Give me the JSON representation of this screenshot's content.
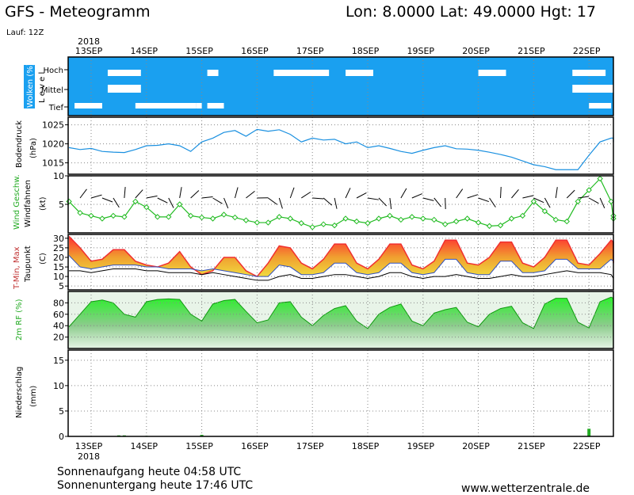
{
  "header": {
    "title": "GFS - Meteogramm",
    "location": "Lon: 8.0000 Lat: 49.0000 Hgt: 17",
    "run": "Lauf: 12Z"
  },
  "footer": {
    "sunrise": "Sonnenaufgang heute 04:58 UTC",
    "sunset": "Sonnenuntergang heute 17:46 UTC",
    "website": "www.wetterzentrale.de"
  },
  "colors": {
    "sky": "#1aa0f0",
    "cloud": "#ffffff",
    "pressure": "#1a90e0",
    "wind": "#22bb22",
    "temp_hot": "#f03030",
    "temp_warm": "#f0a030",
    "temp_mild": "#f0e040",
    "dewpoint": "#000000",
    "rh": "#22dd22",
    "precip": "#22aa22"
  },
  "chart_data": {
    "type": "line",
    "x_axis": {
      "top_year": "2018",
      "bottom_year": "2018",
      "dates": [
        "13SEP",
        "14SEP",
        "15SEP",
        "16SEP",
        "17SEP",
        "18SEP",
        "19SEP",
        "20SEP",
        "21SEP",
        "22SEP"
      ]
    },
    "panels": [
      {
        "id": "clouds",
        "ylabel": "Wolken (%)",
        "ylabel2": "L e v e l",
        "levels": [
          "Hoch",
          "Mittel",
          "Tief"
        ],
        "series": [
          {
            "name": "Hoch",
            "segments": [
              [
                0.3,
                0.5
              ],
              [
                0.4,
                0.9
              ],
              [
                0.6,
                0.5
              ],
              [
                2.1,
                2.3
              ],
              [
                3.3,
                4.3
              ],
              [
                4.6,
                5.1
              ],
              [
                7.0,
                7.5
              ],
              [
                8.7,
                9.3
              ]
            ]
          },
          {
            "name": "Mittel",
            "segments": [
              [
                0.3,
                0.8
              ],
              [
                0.6,
                0.9
              ],
              [
                8.7,
                9.4
              ],
              [
                9.0,
                9.6
              ]
            ]
          },
          {
            "name": "Tief",
            "segments": [
              [
                -0.3,
                0.2
              ],
              [
                0.8,
                1.9
              ],
              [
                1.9,
                2.0
              ],
              [
                2.1,
                2.4
              ],
              [
                9.0,
                9.4
              ]
            ]
          }
        ]
      },
      {
        "id": "pressure",
        "ylabel": "Bodendruck",
        "unit": "(hPa)",
        "ylim": [
          1012,
          1027
        ],
        "yticks": [
          1015,
          1020,
          1025
        ],
        "x": [
          -0.4,
          -0.2,
          0.0,
          0.2,
          0.4,
          0.6,
          0.8,
          1.0,
          1.2,
          1.4,
          1.6,
          1.8,
          2.0,
          2.2,
          2.4,
          2.6,
          2.8,
          3.0,
          3.2,
          3.4,
          3.6,
          3.8,
          4.0,
          4.2,
          4.4,
          4.6,
          4.8,
          5.0,
          5.2,
          5.4,
          5.6,
          5.8,
          6.0,
          6.2,
          6.4,
          6.6,
          6.8,
          7.0,
          7.2,
          7.4,
          7.6,
          7.8,
          8.0,
          8.2,
          8.4,
          8.6,
          8.8,
          9.0,
          9.2,
          9.4,
          9.6,
          9.8
        ],
        "values": [
          1019,
          1018.5,
          1018.8,
          1018,
          1017.8,
          1017.7,
          1018.5,
          1019.5,
          1019.6,
          1020,
          1019.5,
          1018,
          1020.5,
          1021.5,
          1023,
          1023.5,
          1022,
          1023.8,
          1023.3,
          1023.7,
          1022.5,
          1020.5,
          1021.5,
          1021,
          1021.2,
          1020,
          1020.5,
          1019,
          1019.5,
          1018.8,
          1018,
          1017.5,
          1018.3,
          1019,
          1019.5,
          1018.7,
          1018.6,
          1018.3,
          1017.8,
          1017.2,
          1016.5,
          1015.5,
          1014.5,
          1014,
          1013.2,
          1013.2,
          1013.2,
          1017,
          1020.5,
          1021.5,
          1021.5,
          1020.5
        ]
      },
      {
        "id": "wind",
        "ylabel": "Wind Geschw.",
        "ylabel2": "Windfahnen",
        "unit": "(kt)",
        "ylim": [
          0,
          10
        ],
        "yticks": [
          5,
          10
        ],
        "x": [
          -0.4,
          -0.2,
          0.0,
          0.2,
          0.4,
          0.6,
          0.8,
          1.0,
          1.2,
          1.4,
          1.6,
          1.8,
          2.0,
          2.2,
          2.4,
          2.6,
          2.8,
          3.0,
          3.2,
          3.4,
          3.6,
          3.8,
          4.0,
          4.2,
          4.4,
          4.6,
          4.8,
          5.0,
          5.2,
          5.4,
          5.6,
          5.8,
          6.0,
          6.2,
          6.4,
          6.6,
          6.8,
          7.0,
          7.2,
          7.4,
          7.6,
          7.8,
          8.0,
          8.2,
          8.4,
          8.6,
          8.8,
          9.0,
          9.2,
          9.4,
          9.6,
          9.8
        ],
        "values": [
          5.5,
          3.5,
          3.0,
          2.5,
          3.0,
          2.8,
          5.5,
          4.5,
          2.8,
          2.8,
          5.0,
          3.0,
          2.7,
          2.5,
          3.2,
          2.7,
          2.2,
          1.8,
          1.8,
          2.8,
          2.5,
          1.7,
          1.0,
          1.5,
          1.3,
          2.5,
          2.0,
          1.7,
          2.5,
          3.0,
          2.3,
          2.8,
          2.5,
          2.3,
          1.5,
          2.0,
          2.5,
          1.8,
          1.2,
          1.3,
          2.5,
          3.0,
          5.5,
          3.8,
          2.3,
          2.0,
          5.5,
          7.5,
          9.5,
          5.5,
          2.5,
          3.0
        ]
      },
      {
        "id": "temperature",
        "ylabel": "T-Min, Max",
        "ylabel2": "Taupunkt",
        "unit": "(C)",
        "ylim": [
          3,
          32
        ],
        "yticks": [
          5,
          10,
          15,
          20,
          25,
          30
        ],
        "x": [
          -0.4,
          -0.2,
          0.0,
          0.2,
          0.4,
          0.6,
          0.8,
          1.0,
          1.2,
          1.4,
          1.6,
          1.8,
          2.0,
          2.2,
          2.4,
          2.6,
          2.8,
          3.0,
          3.2,
          3.4,
          3.6,
          3.8,
          4.0,
          4.2,
          4.4,
          4.6,
          4.8,
          5.0,
          5.2,
          5.4,
          5.6,
          5.8,
          6.0,
          6.2,
          6.4,
          6.6,
          6.8,
          7.0,
          7.2,
          7.4,
          7.6,
          7.8,
          8.0,
          8.2,
          8.4,
          8.6,
          8.8,
          9.0,
          9.2,
          9.4,
          9.6,
          9.8
        ],
        "series": [
          {
            "name": "Max",
            "values": [
              31,
              25,
              18,
              19,
              24,
              24,
              18,
              16,
              15,
              17,
              23,
              15,
              11,
              13,
              20,
              20,
              13,
              10,
              17,
              26,
              25,
              17,
              14,
              19,
              27,
              27,
              17,
              14,
              19,
              27,
              27,
              16,
              14,
              18,
              29,
              29,
              17,
              16,
              20,
              28,
              28,
              17,
              15,
              20,
              29,
              29,
              17,
              16,
              22,
              29,
              28,
              17
            ]
          },
          {
            "name": "Min",
            "values": [
              29,
              23,
              16,
              17,
              22,
              22,
              16,
              14,
              13,
              15,
              21,
              13,
              9,
              11,
              18,
              18,
              11,
              8,
              15,
              24,
              23,
              15,
              12,
              17,
              25,
              25,
              15,
              12,
              17,
              25,
              25,
              14,
              12,
              16,
              27,
              27,
              15,
              14,
              18,
              26,
              26,
              15,
              13,
              18,
              27,
              27,
              15,
              14,
              20,
              27,
              26,
              15
            ]
          },
          {
            "name": "Taupunkt",
            "values": [
              13,
              13,
              12,
              13,
              14,
              14,
              14,
              13,
              13,
              12,
              12,
              12,
              11,
              12,
              11,
              10,
              9,
              8,
              8,
              10,
              11,
              9,
              9,
              10,
              11,
              11,
              10,
              9,
              10,
              12,
              12,
              10,
              9,
              10,
              10,
              11,
              10,
              9,
              9,
              10,
              11,
              10,
              10,
              11,
              12,
              13,
              12,
              12,
              12,
              11,
              9,
              7
            ]
          }
        ]
      },
      {
        "id": "rh",
        "ylabel": "2m RF (%)",
        "ylim": [
          0,
          100
        ],
        "yticks": [
          20,
          40,
          60,
          80
        ],
        "x": [
          -0.4,
          -0.2,
          0.0,
          0.2,
          0.4,
          0.6,
          0.8,
          1.0,
          1.2,
          1.4,
          1.6,
          1.8,
          2.0,
          2.2,
          2.4,
          2.6,
          2.8,
          3.0,
          3.2,
          3.4,
          3.6,
          3.8,
          4.0,
          4.2,
          4.4,
          4.6,
          4.8,
          5.0,
          5.2,
          5.4,
          5.6,
          5.8,
          6.0,
          6.2,
          6.4,
          6.6,
          6.8,
          7.0,
          7.2,
          7.4,
          7.6,
          7.8,
          8.0,
          8.2,
          8.4,
          8.6,
          8.8,
          9.0,
          9.2,
          9.4,
          9.6,
          9.8
        ],
        "values": [
          38,
          60,
          82,
          85,
          80,
          60,
          55,
          82,
          86,
          87,
          86,
          60,
          48,
          78,
          84,
          86,
          65,
          45,
          50,
          80,
          82,
          55,
          40,
          58,
          70,
          75,
          48,
          35,
          60,
          72,
          78,
          48,
          40,
          62,
          68,
          72,
          46,
          38,
          60,
          70,
          74,
          45,
          35,
          78,
          88,
          88,
          46,
          36,
          82,
          90,
          88,
          42
        ]
      },
      {
        "id": "precip",
        "ylabel": "Niederschlag",
        "unit": "(mm)",
        "ylim": [
          0,
          17
        ],
        "yticks": [
          0,
          5,
          10,
          15
        ],
        "bars": [
          [
            0.5,
            0.2
          ],
          [
            0.6,
            0.2
          ],
          [
            1.0,
            0.1
          ],
          [
            2.0,
            0.3
          ],
          [
            9.0,
            1.5
          ]
        ]
      }
    ]
  }
}
